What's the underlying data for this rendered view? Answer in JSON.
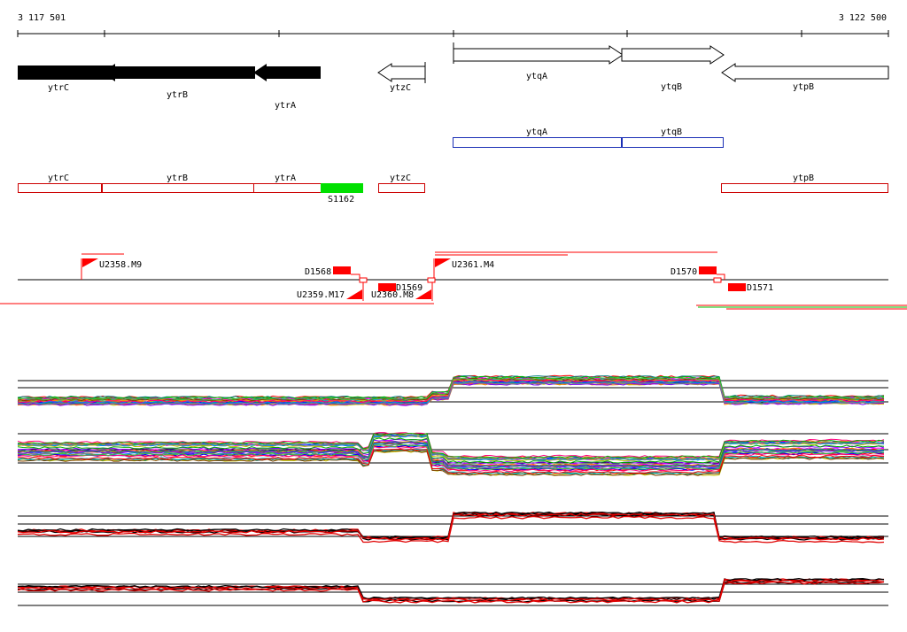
{
  "ruler": {
    "start_label": "3 117 501",
    "end_label": "3 122 500"
  },
  "genes": [
    {
      "name": "ytrC",
      "strand": "-",
      "fill": "#000000"
    },
    {
      "name": "ytrB",
      "strand": "-",
      "fill": "#000000"
    },
    {
      "name": "ytrA",
      "strand": "-",
      "fill": "#000000"
    },
    {
      "name": "ytzC",
      "strand": "-",
      "fill": "#ffffff"
    },
    {
      "name": "ytqA",
      "strand": "+",
      "fill": "#ffffff"
    },
    {
      "name": "ytqB",
      "strand": "+",
      "fill": "#ffffff"
    },
    {
      "name": "ytpB",
      "strand": "-",
      "fill": "#ffffff"
    }
  ],
  "plus_transcripts": [
    "ytqA",
    "ytqB"
  ],
  "minus_transcripts": [
    "ytrC",
    "ytrB",
    "ytrA",
    "ytzC",
    "ytpB"
  ],
  "small_rna": "S1162",
  "upshifts": [
    "U2358.M9",
    "U2359.M17",
    "U2360.M8",
    "U2361.M4"
  ],
  "downshifts": [
    "D1568",
    "D1569",
    "D1570",
    "D1571"
  ],
  "colors": {
    "minus_track": "#cc0000",
    "plus_track": "#1a2fb5",
    "srna": "#00e000",
    "marker": "#ff0000"
  },
  "expression_panels": [
    {
      "id": "plus-strand-tiling",
      "series": "many conditions"
    },
    {
      "id": "minus-strand-tiling",
      "series": "many conditions"
    },
    {
      "id": "plus-strand-replicates",
      "series": "black/red replicates"
    },
    {
      "id": "minus-strand-replicates",
      "series": "black/red replicates"
    }
  ]
}
